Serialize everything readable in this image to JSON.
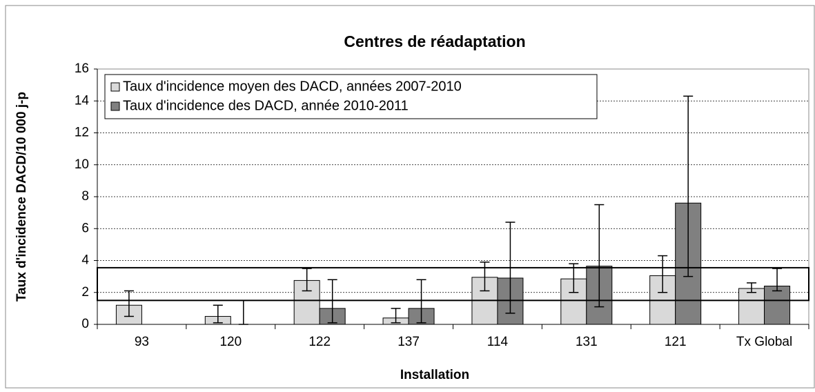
{
  "chart_data": {
    "type": "bar",
    "title": "Centres de réadaptation",
    "x_label": "Installation",
    "y_label": "Taux d'incidence DACD/10 000 j-p",
    "categories": [
      "93",
      "120",
      "122",
      "137",
      "114",
      "131",
      "121",
      "Tx Global"
    ],
    "series": [
      {
        "name": "Taux d'incidence moyen des DACD, années 2007-2010",
        "color": "#d9d9d9",
        "values": [
          1.2,
          0.5,
          2.75,
          0.4,
          2.95,
          2.85,
          3.05,
          2.25
        ],
        "error_low": [
          0.5,
          0.1,
          2.1,
          0.1,
          2.1,
          2.0,
          2.0,
          2.0
        ],
        "error_high": [
          2.1,
          1.2,
          3.5,
          1.0,
          3.9,
          3.8,
          4.3,
          2.6
        ]
      },
      {
        "name": "Taux d'incidence des DACD, année 2010-2011",
        "color": "#808080",
        "values": [
          0,
          0,
          1.0,
          1.0,
          2.9,
          3.65,
          7.6,
          2.4
        ],
        "error_low": [
          null,
          0,
          0.1,
          0.1,
          0.7,
          1.1,
          3.0,
          2.1
        ],
        "error_high": [
          null,
          1.5,
          2.8,
          2.8,
          6.4,
          7.5,
          14.3,
          3.5
        ]
      }
    ],
    "highlight_range": [
      1.5,
      3.55
    ],
    "ylim": [
      0,
      16
    ],
    "yticks": [
      0,
      2,
      4,
      6,
      8,
      10,
      12,
      14,
      16
    ],
    "grid": true,
    "legend": "top-left"
  }
}
